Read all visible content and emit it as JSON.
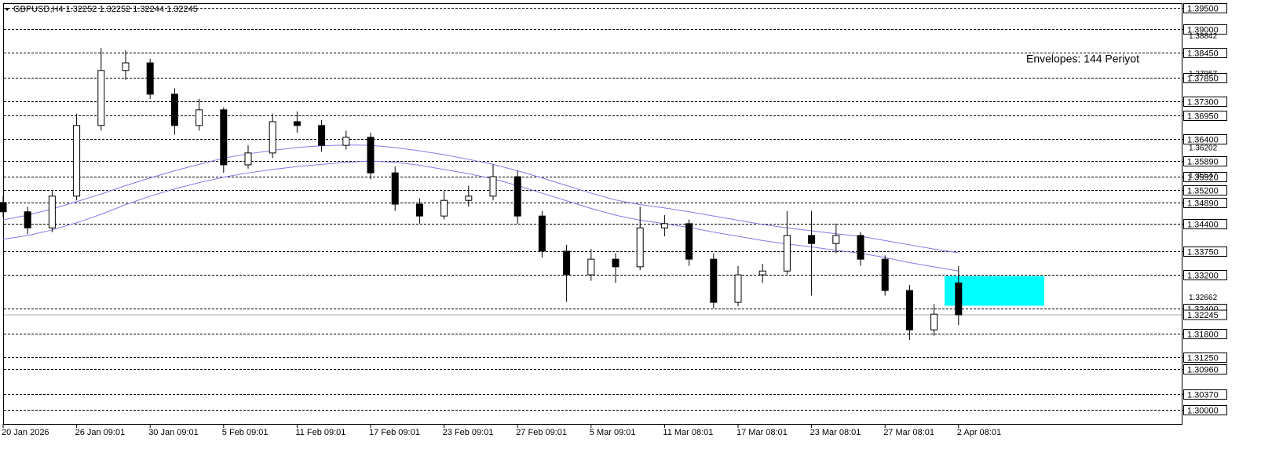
{
  "chart_data": {
    "type": "candlestick",
    "title": "GBPUSD,H4  1.32252 1.32252 1.32244 1.32245",
    "annotation": "Envelopes: 144 Periyot",
    "annotation_color": "#4b3fa0",
    "categories": [
      "20 Jan 2026",
      null,
      null,
      "26 Jan 09:01",
      null,
      null,
      "30 Jan 09:01",
      null,
      null,
      "5 Feb 09:01",
      null,
      null,
      "11 Feb 09:01",
      null,
      null,
      "17 Feb 09:01",
      null,
      null,
      "23 Feb 09:01",
      null,
      null,
      "27 Feb 09:01",
      null,
      null,
      "5 Mar 09:01",
      null,
      null,
      "11 Mar 08:01",
      null,
      null,
      "17 Mar 08:01",
      null,
      null,
      "23 Mar 08:01",
      null,
      null,
      "27 Mar 08:01",
      null,
      null,
      "2 Apr 08:01"
    ],
    "open": [
      1.349,
      1.3468,
      1.343,
      1.3505,
      1.3672,
      1.3802,
      1.382,
      1.3746,
      1.3672,
      1.3709,
      1.3579,
      1.3607,
      1.3681,
      1.3672,
      1.3625,
      1.3644,
      1.356,
      1.3486,
      1.3458,
      1.3495,
      1.3505,
      1.3551,
      1.3458,
      1.3375,
      1.3319,
      1.3356,
      1.3338,
      1.343,
      1.344,
      1.3356,
      1.3254,
      1.3319,
      1.3328,
      1.3412,
      1.3393,
      1.3412,
      1.3356,
      1.3282,
      1.3189,
      1.33
    ],
    "high": [
      1.3505,
      1.348,
      1.352,
      1.37,
      1.3855,
      1.385,
      1.383,
      1.376,
      1.3735,
      1.3715,
      1.3625,
      1.37,
      1.3705,
      1.3685,
      1.366,
      1.3655,
      1.3575,
      1.35,
      1.352,
      1.353,
      1.358,
      1.3565,
      1.347,
      1.339,
      1.338,
      1.337,
      1.348,
      1.346,
      1.345,
      1.337,
      1.334,
      1.3345,
      1.347,
      1.347,
      1.344,
      1.342,
      1.3365,
      1.3295,
      1.325,
      1.334
    ],
    "low": [
      1.3455,
      1.3415,
      1.342,
      1.3495,
      1.366,
      1.378,
      1.3735,
      1.365,
      1.366,
      1.356,
      1.357,
      1.3595,
      1.3655,
      1.361,
      1.3615,
      1.3545,
      1.347,
      1.344,
      1.345,
      1.348,
      1.3495,
      1.344,
      1.336,
      1.3255,
      1.3305,
      1.33,
      1.333,
      1.341,
      1.334,
      1.324,
      1.3245,
      1.33,
      1.332,
      1.327,
      1.337,
      1.334,
      1.327,
      1.3165,
      1.3175,
      1.32
    ],
    "close": [
      1.3468,
      1.343,
      1.3505,
      1.3672,
      1.3802,
      1.382,
      1.3746,
      1.3672,
      1.3709,
      1.3579,
      1.3607,
      1.3681,
      1.3672,
      1.3625,
      1.3644,
      1.356,
      1.3486,
      1.3458,
      1.3495,
      1.3505,
      1.3551,
      1.3458,
      1.3375,
      1.3319,
      1.3356,
      1.3338,
      1.343,
      1.344,
      1.3356,
      1.3254,
      1.3319,
      1.3328,
      1.3412,
      1.3393,
      1.3412,
      1.3356,
      1.3282,
      1.3189,
      1.3226,
      1.32245
    ],
    "envelopes": [
      {
        "color": "#8878e8",
        "values": [
          1.3449,
          1.346,
          1.3475,
          1.3492,
          1.351,
          1.353,
          1.3548,
          1.3565,
          1.358,
          1.3595,
          1.3605,
          1.3613,
          1.362,
          1.3624,
          1.3626,
          1.3625,
          1.362,
          1.3612,
          1.3603,
          1.3592,
          1.358,
          1.3565,
          1.3548,
          1.353,
          1.3512,
          1.3496,
          1.3485,
          1.3477,
          1.3468,
          1.3458,
          1.3448,
          1.3438,
          1.343,
          1.3423,
          1.3416,
          1.341,
          1.34,
          1.339,
          1.338,
          1.3371
        ]
      },
      {
        "color": "#8878e8",
        "values": [
          1.3403,
          1.3412,
          1.3425,
          1.3442,
          1.3462,
          1.3485,
          1.3505,
          1.3522,
          1.3537,
          1.355,
          1.356,
          1.3568,
          1.3575,
          1.358,
          1.3585,
          1.3588,
          1.3585,
          1.3578,
          1.3568,
          1.3558,
          1.3546,
          1.353,
          1.3512,
          1.3494,
          1.3476,
          1.346,
          1.3448,
          1.344,
          1.3431,
          1.342,
          1.341,
          1.34,
          1.3392,
          1.3385,
          1.3377,
          1.337,
          1.336,
          1.3348,
          1.3338,
          1.3328
        ]
      }
    ],
    "zone": {
      "color": "#00ffff",
      "low": 1.3246,
      "high": 1.3316
    },
    "current_price": 1.32245,
    "price_labels": [
      1.38842,
      1.37957,
      1.36202,
      1.35547,
      1.32662
    ],
    "ylim": [
      1.3,
      1.395
    ],
    "yticks": [
      {
        "value": 1.395,
        "label": "1.39500"
      },
      {
        "value": 1.39,
        "label": "1.39000"
      },
      {
        "value": 1.3845,
        "label": "1.38450"
      },
      {
        "value": 1.3785,
        "label": "1.37850"
      },
      {
        "value": 1.373,
        "label": "1.37300"
      },
      {
        "value": 1.3695,
        "label": "1.36950"
      },
      {
        "value": 1.364,
        "label": "1.36400"
      },
      {
        "value": 1.3589,
        "label": "1.35890"
      },
      {
        "value": 1.3552,
        "label": "1.35520"
      },
      {
        "value": 1.352,
        "label": "1.35200"
      },
      {
        "value": 1.3489,
        "label": "1.34890"
      },
      {
        "value": 1.344,
        "label": "1.34400"
      },
      {
        "value": 1.3375,
        "label": "1.33750"
      },
      {
        "value": 1.332,
        "label": "1.33200"
      },
      {
        "value": 1.324,
        "label": "1.32400"
      },
      {
        "value": 1.318,
        "label": "1.31800"
      },
      {
        "value": 1.3125,
        "label": "1.31250"
      },
      {
        "value": 1.3096,
        "label": "1.30960"
      },
      {
        "value": 1.3037,
        "label": "1.30370"
      },
      {
        "value": 1.3,
        "label": "1.30000"
      }
    ],
    "grid": true
  }
}
